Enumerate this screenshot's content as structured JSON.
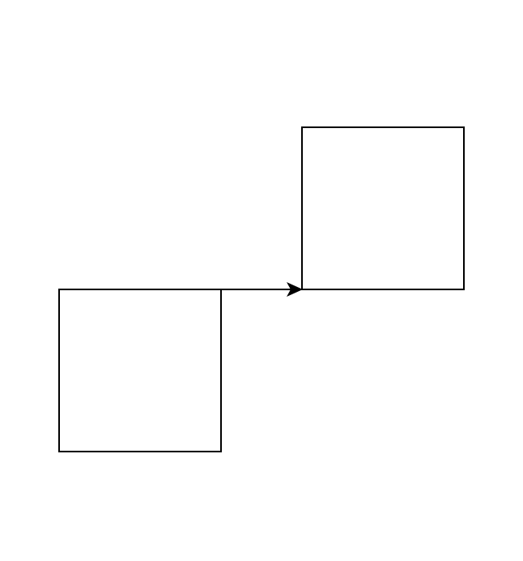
{
  "diagram": {
    "background_color": "#ffffff",
    "stroke_color": "#000000",
    "nodes": [
      {
        "id": "box-a",
        "label": ""
      },
      {
        "id": "box-b",
        "label": ""
      }
    ],
    "edges": [
      {
        "from": "box-a",
        "to": "box-b",
        "arrowhead": "end"
      }
    ]
  }
}
